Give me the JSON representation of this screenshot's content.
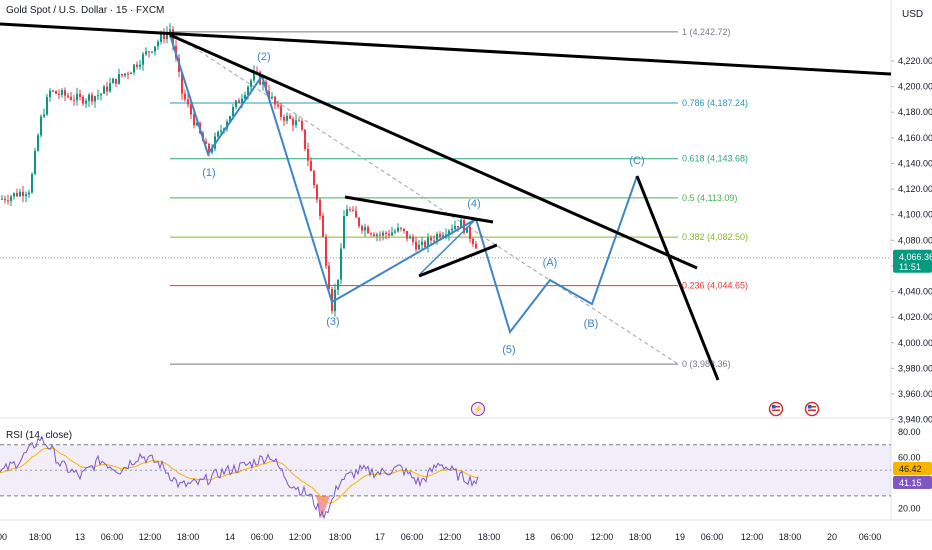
{
  "header": {
    "symbol_title": "Gold Spot / U.S. Dollar · 15 · FXCM",
    "currency": "USD"
  },
  "chart_data": {
    "type": "candlestick",
    "instrument": "Gold Spot / U.S. Dollar",
    "interval": "15",
    "source": "FXCM",
    "price_axis": {
      "ticks": [
        4220,
        4200,
        4180,
        4160,
        4140,
        4120,
        4100,
        4080,
        4060,
        4040,
        4020,
        4000,
        3980,
        3960,
        3940
      ],
      "tick_labels": [
        "4,220.00",
        "4,200.00",
        "4,180.00",
        "4,160.00",
        "4,140.00",
        "4,120.00",
        "4,100.00",
        "4,080.00",
        "4,060.00",
        "4,040.00",
        "4,020.00",
        "4,000.00",
        "3,980.00",
        "3,960.00",
        "3,940.00"
      ]
    },
    "time_axis": {
      "labels": [
        "00",
        "18:00",
        "13",
        "06:00",
        "12:00",
        "18:00",
        "14",
        "06:00",
        "12:00",
        "18:00",
        "17",
        "06:00",
        "12:00",
        "18:00",
        "18",
        "06:00",
        "12:00",
        "18:00",
        "19",
        "06:00",
        "12:00",
        "18:00",
        "20",
        "06:00"
      ]
    },
    "last_price": {
      "value": 4066.36,
      "label": "4,066.36",
      "countdown": "11:51"
    },
    "fibonacci": [
      {
        "level": "1",
        "price": 4242.72,
        "label": "1 (4,242.72)",
        "color": "#787b86"
      },
      {
        "level": "0.786",
        "price": 4187.24,
        "label": "0.786 (4,187.24)",
        "color": "#2c95bd"
      },
      {
        "level": "0.618",
        "price": 4143.68,
        "label": "0.618 (4,143.68)",
        "color": "#2aa876"
      },
      {
        "level": "0.5",
        "price": 4113.09,
        "label": "0.5 (4,113.09)",
        "color": "#4caf50"
      },
      {
        "level": "0.382",
        "price": 4082.5,
        "label": "0.382 (4,082.50)",
        "color": "#8bb625"
      },
      {
        "level": "0.236",
        "price": 4044.65,
        "label": "0.236 (4,044.65)",
        "color": "#e53935"
      },
      {
        "level": "0",
        "price": 3983.36,
        "label": "0 (3,983.36)",
        "color": "#787b86"
      }
    ],
    "wave_labels": [
      "(1)",
      "(2)",
      "(3)",
      "(4)",
      "(5)",
      "(A)",
      "(B)",
      "(C)"
    ],
    "rsi": {
      "title": "RSI (14, close)",
      "ticks": [
        "80.00",
        "60.00",
        "20.00"
      ],
      "current_rsi": "41.15",
      "current_ma": "46.42",
      "upper_band": 70,
      "lower_band": 30
    },
    "colors": {
      "up": "#089981",
      "down": "#f23645",
      "wave": "#3d85c6",
      "trendline": "#000000",
      "rsi_line": "#7e57c2",
      "rsi_ma": "#f7b500"
    }
  }
}
